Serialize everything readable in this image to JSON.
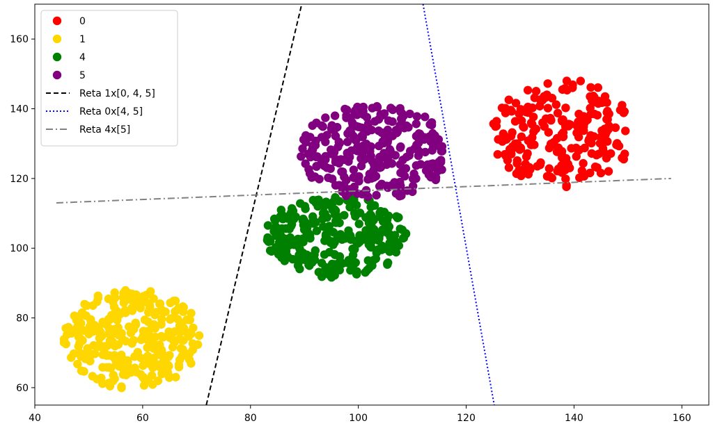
{
  "chart_data": {
    "type": "scatter",
    "title": "",
    "xlabel": "",
    "ylabel": "",
    "xlim": [
      40,
      165
    ],
    "ylim": [
      55,
      170
    ],
    "xticks": [
      40,
      60,
      80,
      100,
      120,
      140,
      160
    ],
    "yticks": [
      60,
      80,
      100,
      120,
      140,
      160
    ],
    "xtick_labels": [
      "40",
      "60",
      "80",
      "100",
      "120",
      "140",
      "160"
    ],
    "ytick_labels": [
      "60",
      "80",
      "100",
      "120",
      "140",
      "160"
    ],
    "grid": false,
    "legend_position": "top-left",
    "series": [
      {
        "name": "0",
        "color": "#ff0000",
        "center": [
          138,
          133
        ],
        "spread": [
          13.5,
          16
        ],
        "count": 220,
        "seed": 11
      },
      {
        "name": "1",
        "color": "#ffd700",
        "center": [
          58,
          74
        ],
        "spread": [
          13,
          14.5
        ],
        "count": 300,
        "seed": 23
      },
      {
        "name": "4",
        "color": "#008000",
        "center": [
          96,
          103.5
        ],
        "spread": [
          13.5,
          12
        ],
        "count": 280,
        "seed": 37
      },
      {
        "name": "5",
        "color": "#800080",
        "center": [
          103,
          127.5
        ],
        "spread": [
          14,
          14
        ],
        "count": 280,
        "seed": 53
      }
    ],
    "lines": [
      {
        "name": "Reta 1x[0, 4, 5]",
        "color": "#000000",
        "style": "dashed",
        "x": [
          71.8,
          89.5
        ],
        "y": [
          55,
          170
        ]
      },
      {
        "name": "Reta 0x[4, 5]",
        "color": "#0000ff",
        "style": "dotted",
        "x": [
          112,
          125.2
        ],
        "y": [
          170,
          55
        ]
      },
      {
        "name": "Reta 4x[5]",
        "color": "#808080",
        "style": "dashdot",
        "x": [
          44,
          158
        ],
        "y": [
          113,
          120
        ]
      }
    ]
  }
}
